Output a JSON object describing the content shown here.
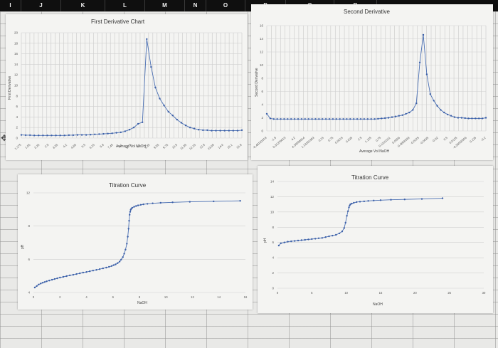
{
  "columns": [
    "I",
    "J",
    "K",
    "L",
    "M",
    "N",
    "O",
    "P",
    "Q",
    "R"
  ],
  "cursor_icon": "plus-move-cursor",
  "charts": {
    "first_derivative": {
      "title": "First Derivative Chart",
      "xlabel": "Average Vol NaOH",
      "ylabel": "First Derivative",
      "yticks": [
        "20",
        "18",
        "16",
        "14",
        "12",
        "10",
        "8",
        "6",
        "4",
        "2",
        "0"
      ],
      "xticks": [
        "1.175",
        "1.55",
        "2.25",
        "2.9",
        "3.55",
        "4.2",
        "4.85",
        "5.5",
        "6.15",
        "6.8",
        "7.45",
        "8.1",
        "8.75",
        "9.1",
        "9.35",
        "9.55",
        "9.75",
        "10.5",
        "11.35",
        "12.15",
        "12.9",
        "13.65",
        "14.4",
        "15.1",
        "15.8"
      ]
    },
    "second_derivative": {
      "title": "Second Derivative",
      "xlabel": "Average Vol NaOH",
      "ylabel": "Second Derivative",
      "yticks": [
        "16",
        "14",
        "12",
        "10",
        "8",
        "6",
        "4",
        "2",
        "0"
      ],
      "xticks": [
        "-0.48181818",
        "-1.8",
        "0.31379013",
        "4.2",
        "4.30599814",
        "1.13181393",
        "0.15",
        "0.75",
        "0.0215",
        "0.025",
        "2.5",
        "1.125",
        "0.75",
        "0.11111111",
        "0.0556",
        "-0.0858333",
        "-0.0125",
        "-0.0625",
        "-0.02",
        "0.5",
        "0.0125",
        "-0.35555556",
        "0.125",
        "-0.2"
      ]
    },
    "titration_left": {
      "title": "Titration Curve",
      "xlabel": "NaOH",
      "ylabel": "pH",
      "yticks": [
        "12",
        "8",
        "6",
        "4"
      ],
      "xticks": [
        "0",
        "2",
        "4",
        "6",
        "8",
        "10",
        "12",
        "14",
        "16"
      ]
    },
    "titration_right": {
      "title": "Titration Curve",
      "xlabel": "NaOH",
      "ylabel": "pH",
      "yticks": [
        "14",
        "12",
        "10",
        "8",
        "6",
        "4",
        "2",
        "0"
      ],
      "xticks": [
        "0",
        "5",
        "10",
        "15",
        "20",
        "25",
        "30"
      ]
    }
  },
  "chart_data": [
    {
      "type": "line",
      "title": "First Derivative Chart",
      "xlabel": "Average Vol NaOH",
      "ylabel": "First Derivative",
      "ylim": [
        0,
        20
      ],
      "series": [
        {
          "values": [
            0.6,
            0.55,
            0.55,
            0.5,
            0.5,
            0.5,
            0.5,
            0.5,
            0.5,
            0.5,
            0.5,
            0.55,
            0.55,
            0.6,
            0.6,
            0.6,
            0.65,
            0.7,
            0.75,
            0.8,
            0.85,
            0.9,
            1.0,
            1.1,
            1.3,
            1.6,
            2.0,
            2.7,
            3.0,
            18.8,
            13.5,
            9.6,
            7.5,
            6.2,
            5.0,
            4.3,
            3.5,
            2.9,
            2.4,
            2.0,
            1.8,
            1.6,
            1.5,
            1.5,
            1.4,
            1.4,
            1.4,
            1.4,
            1.4,
            1.4,
            1.4,
            1.5
          ]
        }
      ]
    },
    {
      "type": "line",
      "title": "Second Derivative",
      "xlabel": "Average Vol NaOH",
      "ylabel": "Second Derivative",
      "ylim": [
        0,
        16
      ],
      "series": [
        {
          "values": [
            2.6,
            1.9,
            1.8,
            1.8,
            1.8,
            1.8,
            1.8,
            1.8,
            1.8,
            1.8,
            1.8,
            1.8,
            1.8,
            1.8,
            1.8,
            1.8,
            1.8,
            1.8,
            1.8,
            1.8,
            1.8,
            1.8,
            1.8,
            1.8,
            1.8,
            1.8,
            1.8,
            1.8,
            1.8,
            1.8,
            1.8,
            1.8,
            1.85,
            1.9,
            1.95,
            2.0,
            2.1,
            2.2,
            2.3,
            2.4,
            2.6,
            2.8,
            3.2,
            4.2,
            10.4,
            14.6,
            8.6,
            5.6,
            4.6,
            3.8,
            3.2,
            2.8,
            2.5,
            2.3,
            2.1,
            2.0,
            2.0,
            1.95,
            1.9,
            1.9,
            1.9,
            1.9,
            1.9,
            2.0
          ]
        }
      ]
    },
    {
      "type": "scatter",
      "title": "Titration Curve",
      "xlabel": "NaOH",
      "ylabel": "pH",
      "xlim": [
        0,
        16
      ],
      "ylim": [
        3,
        13
      ],
      "series": [
        {
          "x": [
            0.1,
            0.25,
            0.4,
            0.55,
            0.7,
            0.85,
            1.0,
            1.2,
            1.4,
            1.6,
            1.8,
            2.0,
            2.25,
            2.5,
            2.75,
            3.0,
            3.25,
            3.5,
            3.75,
            4.0,
            4.25,
            4.5,
            4.75,
            5.0,
            5.25,
            5.5,
            5.7,
            5.9,
            6.05,
            6.2,
            6.35,
            6.5,
            6.62,
            6.75,
            6.85,
            6.95,
            7.05,
            7.12,
            7.18,
            7.22,
            7.26,
            7.3,
            7.34,
            7.38,
            7.45,
            7.6,
            7.75,
            7.9,
            8.1,
            8.3,
            8.6,
            9.0,
            9.6,
            10.5,
            11.8,
            13.6,
            15.6
          ],
          "y": [
            3.5,
            3.65,
            3.8,
            3.9,
            3.98,
            4.05,
            4.12,
            4.2,
            4.28,
            4.35,
            4.42,
            4.5,
            4.57,
            4.64,
            4.72,
            4.78,
            4.85,
            4.92,
            5.0,
            5.06,
            5.13,
            5.2,
            5.27,
            5.34,
            5.42,
            5.5,
            5.58,
            5.66,
            5.74,
            5.82,
            5.95,
            6.1,
            6.3,
            6.55,
            6.9,
            7.3,
            7.9,
            8.6,
            9.4,
            10.2,
            10.8,
            11.1,
            11.3,
            11.4,
            11.5,
            11.6,
            11.68,
            11.74,
            11.8,
            11.85,
            11.9,
            11.95,
            12.0,
            12.05,
            12.1,
            12.15,
            12.2
          ]
        }
      ]
    },
    {
      "type": "scatter",
      "title": "Titration Curve",
      "xlabel": "NaOH",
      "ylabel": "pH",
      "xlim": [
        0,
        30
      ],
      "ylim": [
        0,
        14
      ],
      "series": [
        {
          "x": [
            0.2,
            0.5,
            1.0,
            1.5,
            2.0,
            2.5,
            3.0,
            3.5,
            4.0,
            4.5,
            5.0,
            5.5,
            6.0,
            6.5,
            7.0,
            7.5,
            8.0,
            8.5,
            9.0,
            9.4,
            9.7,
            9.9,
            10.1,
            10.25,
            10.4,
            10.5,
            10.6,
            10.8,
            11.1,
            11.5,
            12.0,
            12.6,
            13.2,
            14.0,
            15.0,
            16.5,
            18.5,
            21.0,
            24.0
          ],
          "y": [
            5.6,
            5.9,
            6.0,
            6.1,
            6.15,
            6.2,
            6.25,
            6.3,
            6.35,
            6.4,
            6.45,
            6.5,
            6.55,
            6.6,
            6.7,
            6.8,
            6.9,
            7.0,
            7.2,
            7.45,
            7.9,
            8.6,
            9.5,
            10.1,
            10.6,
            10.85,
            11.0,
            11.1,
            11.2,
            11.3,
            11.35,
            11.4,
            11.45,
            11.5,
            11.55,
            11.6,
            11.65,
            11.7,
            11.8
          ]
        }
      ]
    }
  ]
}
